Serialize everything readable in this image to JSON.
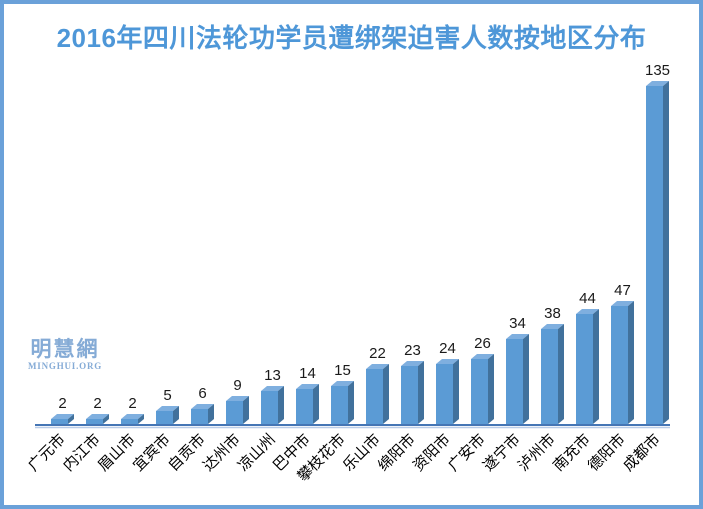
{
  "frame": {
    "border_color": "#6ba1d9",
    "background": "#ffffff"
  },
  "title": {
    "text": "2016年四川法轮功学员遭绑架迫害人数按地区分布",
    "color": "#4e97d8"
  },
  "watermark": {
    "line1": "明慧網",
    "line2": "MINGHUI.ORG",
    "color": "#85abd6"
  },
  "chart_data": {
    "type": "bar",
    "title": "2016年四川法轮功学员遭绑架迫害人数按地区分布",
    "categories": [
      "广元市",
      "内江市",
      "眉山市",
      "宜宾市",
      "自贡市",
      "达州市",
      "凉山州",
      "巴中市",
      "攀枝花市",
      "乐山市",
      "绵阳市",
      "资阳市",
      "广安市",
      "遂宁市",
      "泸州市",
      "南充市",
      "德阳市",
      "成都市"
    ],
    "values": [
      2,
      2,
      2,
      5,
      6,
      9,
      13,
      14,
      15,
      22,
      23,
      24,
      26,
      34,
      38,
      44,
      47,
      135
    ],
    "xlabel": "",
    "ylabel": "",
    "ylim": [
      0,
      140
    ],
    "grid": false,
    "legend": false,
    "bar_style": "3d",
    "bar_front_color": "#5b9bd5",
    "bar_side_color": "#41719c",
    "bar_top_color": "#7fafdf",
    "value_label_color": "#1a1a1a",
    "category_label_color": "#000000",
    "axis_line_color": "#4576b5",
    "axis_line_shadow_color": "#b9cde8"
  }
}
